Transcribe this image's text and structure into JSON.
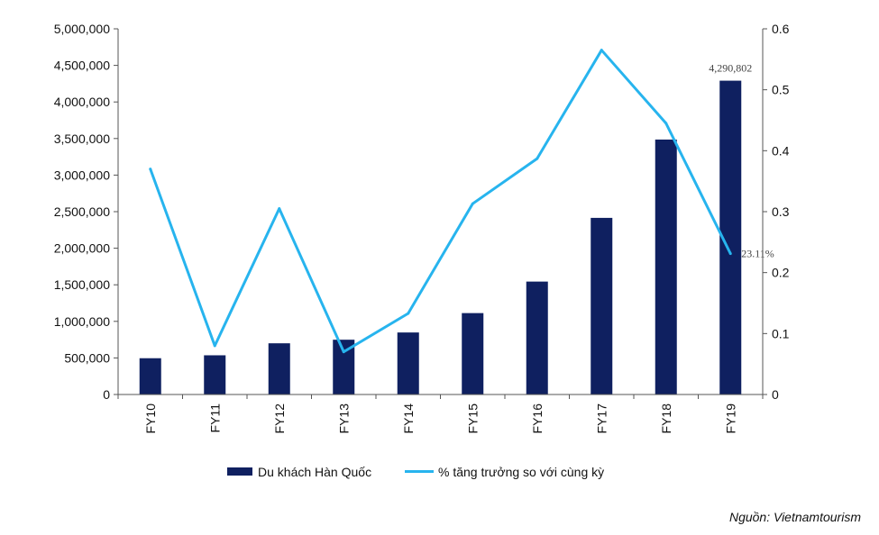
{
  "chart_data": {
    "type": "bar",
    "categories": [
      "FY10",
      "FY11",
      "FY12",
      "FY13",
      "FY14",
      "FY15",
      "FY16",
      "FY17",
      "FY18",
      "FY19"
    ],
    "series": [
      {
        "name": "Du khách Hàn Quốc",
        "type": "bar",
        "axis": "left",
        "values": [
          496000,
          536000,
          700000,
          749000,
          848000,
          1113000,
          1544000,
          2415000,
          3486000,
          4290802
        ],
        "color": "#0f2060"
      },
      {
        "name": "% tăng trưởng so với cùng kỳ",
        "type": "line",
        "axis": "right",
        "values": [
          0.37,
          0.08,
          0.305,
          0.07,
          0.133,
          0.313,
          0.387,
          0.565,
          0.445,
          0.2311
        ],
        "color": "#27b4ee"
      }
    ],
    "y_left": {
      "min": 0,
      "max": 5000000,
      "ticks": [
        "0",
        "500,000",
        "1,000,000",
        "1,500,000",
        "2,000,000",
        "2,500,000",
        "3,000,000",
        "3,500,000",
        "4,000,000",
        "4,500,000",
        "5,000,000"
      ]
    },
    "y_right": {
      "min": 0,
      "max": 0.6,
      "ticks": [
        "0",
        "0.1",
        "0.2",
        "0.3",
        "0.4",
        "0.5",
        "0.6"
      ]
    },
    "annotations": [
      {
        "series": 0,
        "index": 9,
        "text": "4,290,802"
      },
      {
        "series": 1,
        "index": 9,
        "text": "23.11%"
      }
    ],
    "grid": false,
    "legend_position": "bottom"
  },
  "source_text": "Nguồn: Vietnamtourism"
}
